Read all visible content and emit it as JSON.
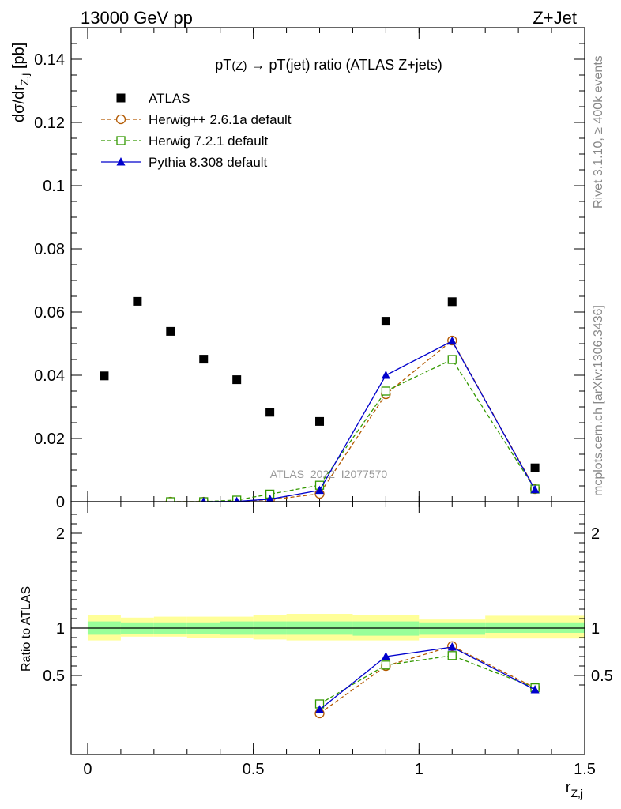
{
  "header": {
    "left": "13000 GeV pp",
    "right": "Z+Jet"
  },
  "side": {
    "rivet": "Rivet 3.1.10, ≥ 400k events",
    "mcplots": "mcplots.cern.ch [arXiv:1306.3436]"
  },
  "watermark": "ATLAS_2022_I2077570",
  "chart_data": [
    {
      "type": "scatter",
      "title_main": "pT",
      "title_sub1": "(Z)",
      "title_arrow": " → ",
      "title_rest": "pT(jet) ratio (ATLAS Z+jets)",
      "ylabel_main": "dσ/dr",
      "ylabel_sub": "Z,j",
      "ylabel_unit": " [pb]",
      "ylim": [
        0,
        0.15
      ],
      "yticks": [
        {
          "v": 0,
          "label": "0"
        },
        {
          "v": 0.02,
          "label": "0.02"
        },
        {
          "v": 0.04,
          "label": "0.04"
        },
        {
          "v": 0.06,
          "label": "0.06"
        },
        {
          "v": 0.08,
          "label": "0.08"
        },
        {
          "v": 0.1,
          "label": "0.1"
        },
        {
          "v": 0.12,
          "label": "0.12"
        },
        {
          "v": 0.14,
          "label": "0.14"
        }
      ],
      "xlim": [
        -0.05,
        1.5
      ],
      "series": [
        {
          "name": "ATLAS",
          "color": "#000000",
          "marker": "square-filled",
          "x": [
            0.05,
            0.15,
            0.25,
            0.35,
            0.45,
            0.55,
            0.7,
            0.9,
            1.1,
            1.35
          ],
          "values": [
            0.0398,
            0.0634,
            0.0539,
            0.0451,
            0.0386,
            0.0283,
            0.0254,
            0.0571,
            0.0633,
            0.0107
          ]
        },
        {
          "name": "Herwig++ 2.6.1a default",
          "color": "#b35900",
          "marker": "circle-open",
          "dashed": true,
          "x": [
            0.25,
            0.35,
            0.45,
            0.55,
            0.7,
            0.9,
            1.1,
            1.35
          ],
          "values": [
            0.0,
            0.0,
            0.0001,
            0.0006,
            0.0025,
            0.034,
            0.051,
            0.004
          ]
        },
        {
          "name": "Herwig 7.2.1 default",
          "color": "#339900",
          "marker": "square-open",
          "dashed": true,
          "x": [
            0.25,
            0.35,
            0.45,
            0.55,
            0.7,
            0.9,
            1.1,
            1.35
          ],
          "values": [
            0.0,
            0.0,
            0.0005,
            0.0024,
            0.0052,
            0.035,
            0.045,
            0.004
          ]
        },
        {
          "name": "Pythia 8.308 default",
          "color": "#0000cc",
          "marker": "triangle-filled",
          "dashed": false,
          "x": [
            0.35,
            0.45,
            0.55,
            0.7,
            0.9,
            1.1,
            1.35
          ],
          "values": [
            0.0,
            0.0001,
            0.0008,
            0.0036,
            0.04,
            0.0508,
            0.0038
          ]
        }
      ]
    },
    {
      "type": "line",
      "ylabel": "Ratio to ATLAS",
      "xlabel_main": "r",
      "xlabel_sub": "Z,j",
      "ylim": [
        0.35,
        2.3
      ],
      "xlim": [
        -0.05,
        1.5
      ],
      "yticks": [
        {
          "v": 0.5,
          "label": "0.5"
        },
        {
          "v": 1,
          "label": "1"
        },
        {
          "v": 2,
          "label": "2"
        }
      ],
      "xticks": [
        {
          "v": 0,
          "label": "0"
        },
        {
          "v": 0.5,
          "label": "0.5"
        },
        {
          "v": 1,
          "label": "1"
        },
        {
          "v": 1.5,
          "label": "1.5"
        }
      ],
      "bands": {
        "edges": [
          0.0,
          0.1,
          0.2,
          0.3,
          0.4,
          0.5,
          0.6,
          0.8,
          1.0,
          1.2,
          1.5
        ],
        "stat_lo": [
          0.93,
          0.94,
          0.94,
          0.94,
          0.93,
          0.93,
          0.93,
          0.92,
          0.93,
          0.95
        ],
        "stat_hi": [
          1.07,
          1.06,
          1.06,
          1.06,
          1.07,
          1.07,
          1.07,
          1.07,
          1.06,
          1.06
        ],
        "tot_lo": [
          0.87,
          0.91,
          0.91,
          0.9,
          0.9,
          0.88,
          0.87,
          0.87,
          0.9,
          0.89
        ],
        "tot_hi": [
          1.14,
          1.11,
          1.12,
          1.12,
          1.12,
          1.14,
          1.15,
          1.14,
          1.09,
          1.13
        ],
        "stat_color": "#99ff99",
        "tot_color": "#ffff99"
      },
      "series": [
        {
          "name": "Herwig++ 2.6.1a default",
          "color": "#b35900",
          "marker": "circle-open",
          "dashed": true,
          "x": [
            0.7,
            0.9,
            1.1,
            1.35
          ],
          "values": [
            0.1,
            0.6,
            0.81,
            0.37
          ]
        },
        {
          "name": "Herwig 7.2.1 default",
          "color": "#339900",
          "marker": "square-open",
          "dashed": true,
          "x": [
            0.7,
            0.9,
            1.1,
            1.35
          ],
          "values": [
            0.2,
            0.61,
            0.71,
            0.37
          ]
        },
        {
          "name": "Pythia 8.308 default",
          "color": "#0000cc",
          "marker": "triangle-filled",
          "dashed": false,
          "x": [
            0.7,
            0.9,
            1.1,
            1.35
          ],
          "values": [
            0.14,
            0.7,
            0.8,
            0.35
          ]
        }
      ]
    }
  ]
}
